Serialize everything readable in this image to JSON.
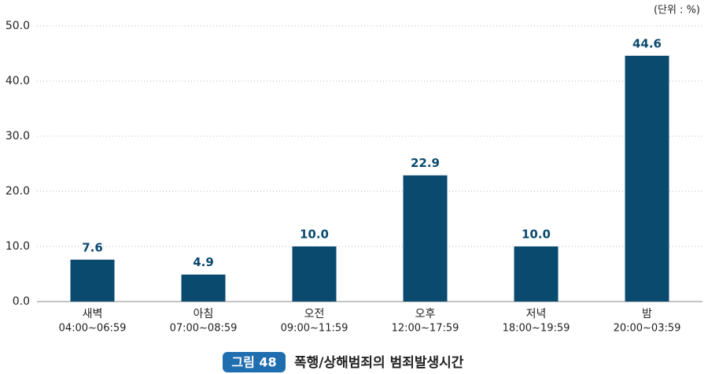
{
  "chart_data": {
    "type": "bar",
    "unit_label": "(단위 : %)",
    "figure_label": "그림 48",
    "title": "폭행/상해범죄의 범죄발생시간",
    "categories": [
      "새벽",
      "아침",
      "오전",
      "오후",
      "저녁",
      "밤"
    ],
    "category_times": [
      "04:00~06:59",
      "07:00~08:59",
      "09:00~11:59",
      "12:00~17:59",
      "18:00~19:59",
      "20:00~03:59"
    ],
    "values": [
      7.6,
      4.9,
      10.0,
      22.9,
      10.0,
      44.6
    ],
    "value_labels": [
      "7.6",
      "4.9",
      "10.0",
      "22.9",
      "10.0",
      "44.6"
    ],
    "color": "#0b4a6f",
    "ylim": [
      0,
      50
    ],
    "yticks": [
      {
        "value": 0,
        "label": "0.0"
      },
      {
        "value": 10,
        "label": "10.0"
      },
      {
        "value": 20,
        "label": "20.0"
      },
      {
        "value": 30,
        "label": "30.0"
      },
      {
        "value": 40,
        "label": "40.0"
      },
      {
        "value": 50,
        "label": "50.0"
      }
    ],
    "grid": true
  }
}
